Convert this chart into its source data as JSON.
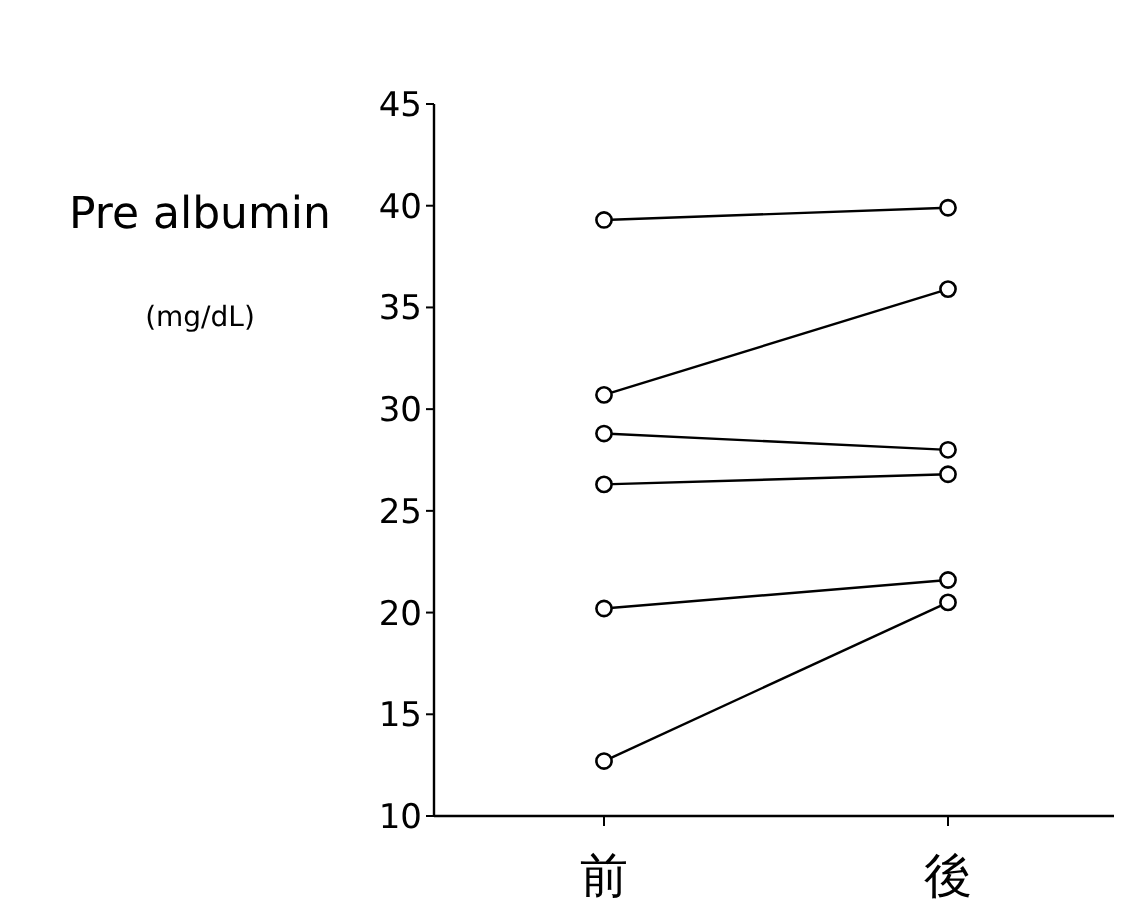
{
  "chart_data": {
    "type": "line",
    "ylabel": "Pre albumin",
    "annotations": [
      "(mg/dL)"
    ],
    "categories": [
      "前",
      "後"
    ],
    "ylim": [
      10,
      45
    ],
    "yticks": [
      10,
      15,
      20,
      25,
      30,
      35,
      40,
      45
    ],
    "marker": "circle",
    "line_style": "solid",
    "grid": false,
    "series": [
      {
        "color": "#000000",
        "values": [
          39.3,
          39.9
        ]
      },
      {
        "color": "#000000",
        "values": [
          30.7,
          35.9
        ]
      },
      {
        "color": "#000000",
        "values": [
          28.8,
          28.0
        ]
      },
      {
        "color": "#000000",
        "values": [
          26.3,
          26.8
        ]
      },
      {
        "color": "#000000",
        "values": [
          20.2,
          21.6
        ]
      },
      {
        "color": "#000000",
        "values": [
          12.7,
          20.5
        ]
      }
    ]
  }
}
